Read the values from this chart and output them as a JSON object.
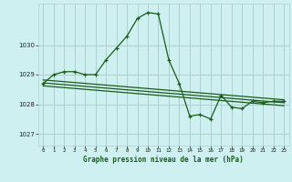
{
  "title": "Graphe pression niveau de la mer (hPa)",
  "bg_color": "#cef0f0",
  "grid_color": "#b0d0d0",
  "line_color": "#1a5c1a",
  "marker_color": "#1a5c1a",
  "xlim": [
    -0.5,
    23.5
  ],
  "ylim": [
    1026.6,
    1031.4
  ],
  "yticks": [
    1027,
    1028,
    1029,
    1030
  ],
  "xticks": [
    0,
    1,
    2,
    3,
    4,
    5,
    6,
    7,
    8,
    9,
    10,
    11,
    12,
    13,
    14,
    15,
    16,
    17,
    18,
    19,
    20,
    21,
    22,
    23
  ],
  "hours": [
    0,
    1,
    2,
    3,
    4,
    5,
    6,
    7,
    8,
    9,
    10,
    11,
    12,
    13,
    14,
    15,
    16,
    17,
    18,
    19,
    20,
    21,
    22,
    23
  ],
  "main_data": [
    1028.7,
    1029.0,
    1029.1,
    1029.1,
    1029.0,
    1029.0,
    1029.5,
    1029.9,
    1030.3,
    1030.9,
    1031.1,
    1031.05,
    1029.5,
    1028.7,
    1027.6,
    1027.65,
    1027.5,
    1028.3,
    1027.9,
    1027.85,
    1028.1,
    1028.05,
    1028.1,
    1028.1
  ],
  "trend_lines": [
    [
      [
        0,
        1028.82
      ],
      [
        23,
        1028.15
      ]
    ],
    [
      [
        0,
        1028.72
      ],
      [
        23,
        1028.05
      ]
    ],
    [
      [
        0,
        1028.62
      ],
      [
        23,
        1027.95
      ]
    ]
  ]
}
